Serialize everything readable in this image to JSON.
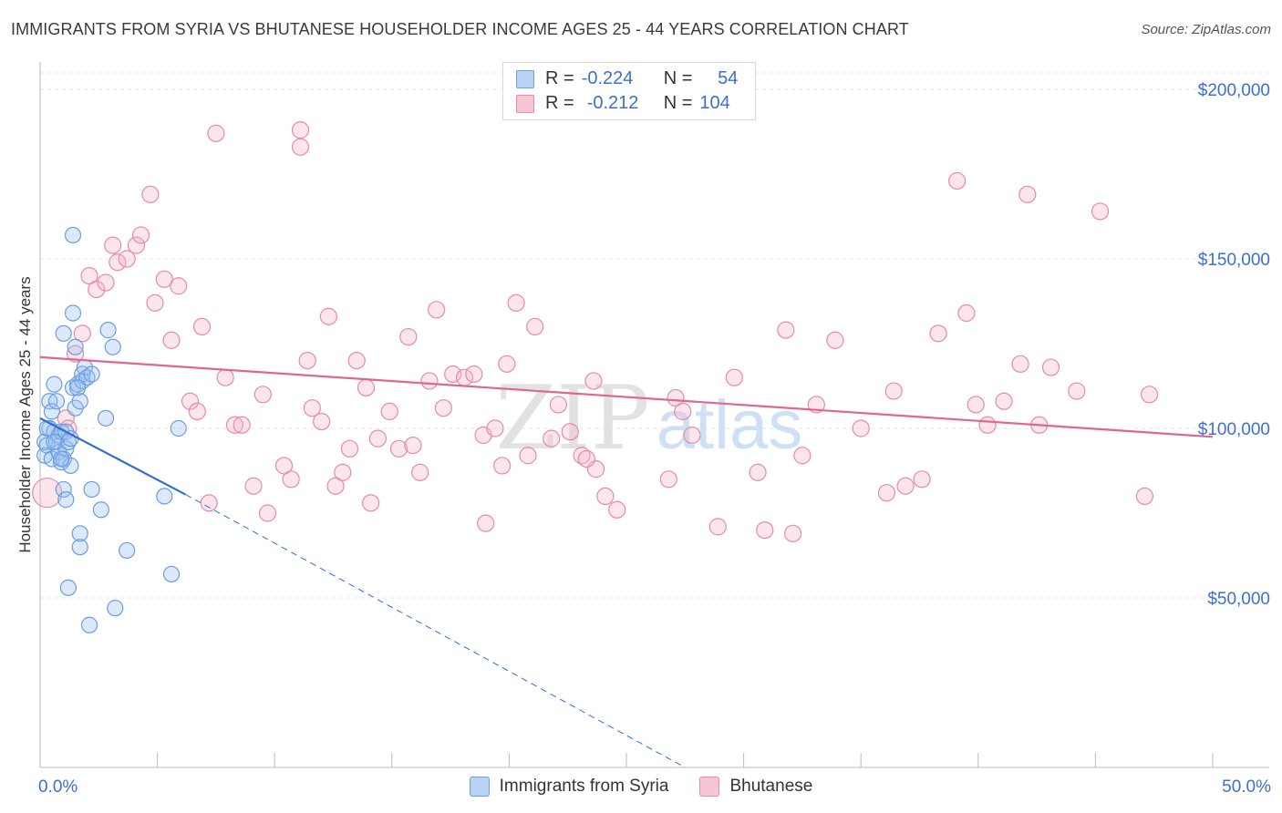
{
  "title": "IMMIGRANTS FROM SYRIA VS BHUTANESE HOUSEHOLDER INCOME AGES 25 - 44 YEARS CORRELATION CHART",
  "source": "Source: ZipAtlas.com",
  "watermark": {
    "zip": "ZIP",
    "atlas": "atlas"
  },
  "stats": [
    {
      "r_label": "R =",
      "r_value": "-0.224",
      "n_label": "N =",
      "n_value": "54",
      "color": "#6f9fe0",
      "fill": "#b9d2f4"
    },
    {
      "r_label": "R =",
      "r_value": "-0.212",
      "n_label": "N =",
      "n_value": "104",
      "color": "#e88aa8",
      "fill": "#f7c6d5"
    }
  ],
  "colors": {
    "syria": "#6b9de0",
    "syria_fill": "rgba(156,193,240,0.35)",
    "bhutan": "#e58aaa",
    "bhutan_fill": "rgba(246,180,201,0.35)",
    "syria_line": "#2d6fd1",
    "bhutan_line": "#e0668f",
    "tick_text": "#3d6fcf"
  },
  "chart_data": {
    "type": "scatter",
    "title": "IMMIGRANTS FROM SYRIA VS BHUTANESE HOUSEHOLDER INCOME AGES 25 - 44 YEARS CORRELATION CHART",
    "xlabel": "",
    "ylabel": "Householder Income Ages 25 - 44 years",
    "xlim": [
      0,
      50
    ],
    "ylim": [
      0,
      210000
    ],
    "x_tick_labels": [
      "0.0%",
      "50.0%"
    ],
    "y_ticks": [
      50000,
      100000,
      150000,
      200000
    ],
    "y_tick_labels": [
      "$50,000",
      "$100,000",
      "$150,000",
      "$200,000"
    ],
    "legend": [
      "Immigrants from Syria",
      "Bhutanese"
    ],
    "series": [
      {
        "name": "Immigrants from Syria",
        "trend": {
          "x": [
            0.0,
            6.2
          ],
          "y": [
            103000,
            80500
          ],
          "extended_x": [
            6.2,
            27.5
          ],
          "extended_y": [
            80500,
            0
          ]
        },
        "points": [
          [
            0.2,
            92000
          ],
          [
            0.2,
            96000
          ],
          [
            0.3,
            95000
          ],
          [
            0.4,
            100000
          ],
          [
            0.4,
            108000
          ],
          [
            0.5,
            91000
          ],
          [
            0.5,
            105000
          ],
          [
            0.6,
            99000
          ],
          [
            0.6,
            113000
          ],
          [
            0.7,
            96000
          ],
          [
            0.7,
            108000
          ],
          [
            0.8,
            93000
          ],
          [
            0.8,
            98000
          ],
          [
            0.9,
            90000
          ],
          [
            0.9,
            99000
          ],
          [
            1.0,
            128000
          ],
          [
            1.0,
            91000
          ],
          [
            1.0,
            82000
          ],
          [
            1.1,
            94000
          ],
          [
            1.1,
            99000
          ],
          [
            1.1,
            79000
          ],
          [
            1.2,
            96000
          ],
          [
            1.2,
            53000
          ],
          [
            1.3,
            89000
          ],
          [
            1.4,
            157000
          ],
          [
            1.4,
            134000
          ],
          [
            1.4,
            112000
          ],
          [
            1.5,
            106000
          ],
          [
            1.5,
            124000
          ],
          [
            1.6,
            113000
          ],
          [
            1.7,
            69000
          ],
          [
            1.7,
            65000
          ],
          [
            1.7,
            108000
          ],
          [
            1.8,
            116000
          ],
          [
            1.8,
            114000
          ],
          [
            1.9,
            118000
          ],
          [
            2.0,
            115000
          ],
          [
            2.1,
            42000
          ],
          [
            2.2,
            116000
          ],
          [
            2.2,
            82000
          ],
          [
            2.6,
            76000
          ],
          [
            2.8,
            103000
          ],
          [
            2.9,
            129000
          ],
          [
            3.1,
            124000
          ],
          [
            3.2,
            47000
          ],
          [
            3.7,
            64000
          ],
          [
            5.3,
            80000
          ],
          [
            5.6,
            57000
          ],
          [
            5.9,
            100000
          ],
          [
            0.3,
            100000
          ],
          [
            0.6,
            96000
          ],
          [
            0.9,
            91000
          ],
          [
            1.3,
            97000
          ],
          [
            1.6,
            112000
          ]
        ]
      },
      {
        "name": "Bhutanese",
        "trend": {
          "x": [
            0.0,
            50.0
          ],
          "y": [
            121000,
            97500
          ]
        },
        "points": [
          [
            0.3,
            81000
          ],
          [
            1.1,
            103000
          ],
          [
            1.2,
            100000
          ],
          [
            1.5,
            122000
          ],
          [
            1.8,
            128000
          ],
          [
            2.1,
            145000
          ],
          [
            2.4,
            141000
          ],
          [
            2.8,
            143000
          ],
          [
            3.1,
            154000
          ],
          [
            3.3,
            149000
          ],
          [
            3.7,
            150000
          ],
          [
            4.1,
            154000
          ],
          [
            4.3,
            157000
          ],
          [
            4.7,
            169000
          ],
          [
            4.9,
            137000
          ],
          [
            5.3,
            144000
          ],
          [
            5.6,
            126000
          ],
          [
            5.9,
            142000
          ],
          [
            6.4,
            108000
          ],
          [
            6.7,
            105000
          ],
          [
            6.9,
            130000
          ],
          [
            7.2,
            78000
          ],
          [
            7.5,
            187000
          ],
          [
            7.9,
            115000
          ],
          [
            8.3,
            101000
          ],
          [
            8.6,
            101000
          ],
          [
            9.1,
            83000
          ],
          [
            9.5,
            110000
          ],
          [
            9.7,
            75000
          ],
          [
            10.4,
            89000
          ],
          [
            10.7,
            85000
          ],
          [
            11.1,
            183000
          ],
          [
            11.1,
            188000
          ],
          [
            11.4,
            120000
          ],
          [
            11.6,
            106000
          ],
          [
            12.0,
            102000
          ],
          [
            12.3,
            133000
          ],
          [
            12.6,
            83000
          ],
          [
            12.9,
            87000
          ],
          [
            13.2,
            94000
          ],
          [
            13.5,
            120000
          ],
          [
            13.9,
            112000
          ],
          [
            14.1,
            78000
          ],
          [
            14.4,
            97000
          ],
          [
            14.9,
            105000
          ],
          [
            15.3,
            94000
          ],
          [
            15.7,
            127000
          ],
          [
            15.9,
            95000
          ],
          [
            16.2,
            87000
          ],
          [
            16.6,
            114000
          ],
          [
            16.9,
            135000
          ],
          [
            17.2,
            106000
          ],
          [
            17.6,
            116000
          ],
          [
            18.1,
            115000
          ],
          [
            18.5,
            116000
          ],
          [
            18.9,
            98000
          ],
          [
            19.0,
            72000
          ],
          [
            19.4,
            100000
          ],
          [
            19.7,
            89000
          ],
          [
            19.9,
            119000
          ],
          [
            20.3,
            137000
          ],
          [
            20.8,
            92000
          ],
          [
            21.1,
            130000
          ],
          [
            21.8,
            97000
          ],
          [
            22.1,
            107000
          ],
          [
            22.6,
            99000
          ],
          [
            23.1,
            92000
          ],
          [
            23.6,
            114000
          ],
          [
            23.7,
            88000
          ],
          [
            24.1,
            80000
          ],
          [
            24.6,
            76000
          ],
          [
            26.8,
            85000
          ],
          [
            27.1,
            109000
          ],
          [
            27.4,
            105000
          ],
          [
            27.8,
            98000
          ],
          [
            28.9,
            71000
          ],
          [
            29.6,
            115000
          ],
          [
            30.6,
            87000
          ],
          [
            30.9,
            70000
          ],
          [
            31.8,
            129000
          ],
          [
            32.1,
            69000
          ],
          [
            32.5,
            92000
          ],
          [
            33.1,
            107000
          ],
          [
            33.9,
            126000
          ],
          [
            35.0,
            100000
          ],
          [
            36.1,
            81000
          ],
          [
            36.4,
            111000
          ],
          [
            36.9,
            83000
          ],
          [
            37.6,
            85000
          ],
          [
            38.3,
            128000
          ],
          [
            39.1,
            173000
          ],
          [
            39.5,
            134000
          ],
          [
            39.9,
            107000
          ],
          [
            40.4,
            101000
          ],
          [
            41.1,
            108000
          ],
          [
            41.8,
            119000
          ],
          [
            42.1,
            169000
          ],
          [
            42.6,
            101000
          ],
          [
            43.1,
            118000
          ],
          [
            44.2,
            111000
          ],
          [
            45.2,
            164000
          ],
          [
            47.1,
            80000
          ],
          [
            47.3,
            110000
          ],
          [
            23.3,
            91000
          ]
        ]
      }
    ]
  }
}
